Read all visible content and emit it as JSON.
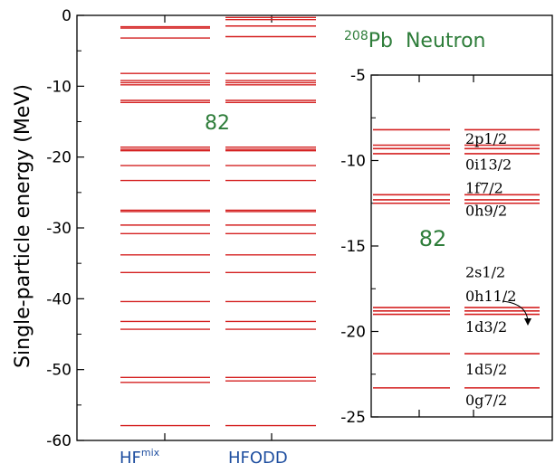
{
  "chart_data": [
    {
      "type": "level-diagram",
      "ylabel": "Single-particle energy (MeV)",
      "ylim": [
        -60,
        0
      ],
      "yticks": [
        0,
        -10,
        -20,
        -30,
        -40,
        -50,
        -60
      ],
      "columns": [
        {
          "label": "HF",
          "label_sup": "mix"
        },
        {
          "label": "HFODD",
          "label_sup": ""
        }
      ],
      "gap_label": "82",
      "series": [
        {
          "column": 0,
          "levels": [
            -1.6,
            -1.8,
            -3.2,
            -8.2,
            -9.2,
            -9.5,
            -9.8,
            -12.0,
            -12.3,
            -18.6,
            -18.9,
            -19.1,
            -21.2,
            -23.3,
            -27.5,
            -27.7,
            -29.6,
            -30.8,
            -33.8,
            -36.3,
            -40.4,
            -43.2,
            -44.3,
            -51.1,
            -51.8,
            -57.9
          ]
        },
        {
          "column": 1,
          "levels": [
            -0.3,
            -0.6,
            -1.5,
            -3.0,
            -8.2,
            -9.2,
            -9.5,
            -9.8,
            -12.0,
            -12.3,
            -18.6,
            -18.9,
            -19.1,
            -21.2,
            -23.3,
            -27.5,
            -27.7,
            -29.6,
            -30.8,
            -33.8,
            -36.3,
            -40.4,
            -43.2,
            -44.3,
            -51.1,
            -51.6,
            -57.9
          ]
        }
      ]
    },
    {
      "type": "level-diagram",
      "title_sup": "208",
      "title": "Pb  Neutron",
      "ylim": [
        -25,
        -5
      ],
      "yticks": [
        -5,
        -10,
        -15,
        -20,
        -25
      ],
      "gap_label": "82",
      "series": [
        {
          "column": 0,
          "levels": [
            -8.2,
            -9.1,
            -9.3,
            -9.6,
            -12.0,
            -12.3,
            -12.5,
            -18.6,
            -18.8,
            -19.0,
            -21.3,
            -23.3
          ]
        },
        {
          "column": 1,
          "levels": [
            -8.2,
            -9.1,
            -9.3,
            -9.6,
            -12.0,
            -12.3,
            -12.5,
            -18.6,
            -18.8,
            -19.0,
            -21.3,
            -23.3
          ]
        }
      ],
      "state_labels": [
        {
          "main": "2p",
          "frac": "1/2",
          "y": -8.7
        },
        {
          "main": "0i",
          "frac": "13/2",
          "y": -10.2
        },
        {
          "main": "1f",
          "frac": "7/2",
          "y": -11.6
        },
        {
          "main": "0h",
          "frac": "9/2",
          "y": -12.9
        },
        {
          "main": "2s",
          "frac": "1/2",
          "y": -16.5
        },
        {
          "main": "0h",
          "frac": "11/2",
          "y": -17.9
        },
        {
          "main": "1d",
          "frac": "3/2",
          "y": -19.7
        },
        {
          "main": "1d",
          "frac": "5/2",
          "y": -22.2
        },
        {
          "main": "0g",
          "frac": "7/2",
          "y": -24.0
        }
      ]
    }
  ],
  "colors": {
    "level": "#d42020",
    "green": "#2e7d3a",
    "blue": "#1f4fa0"
  }
}
